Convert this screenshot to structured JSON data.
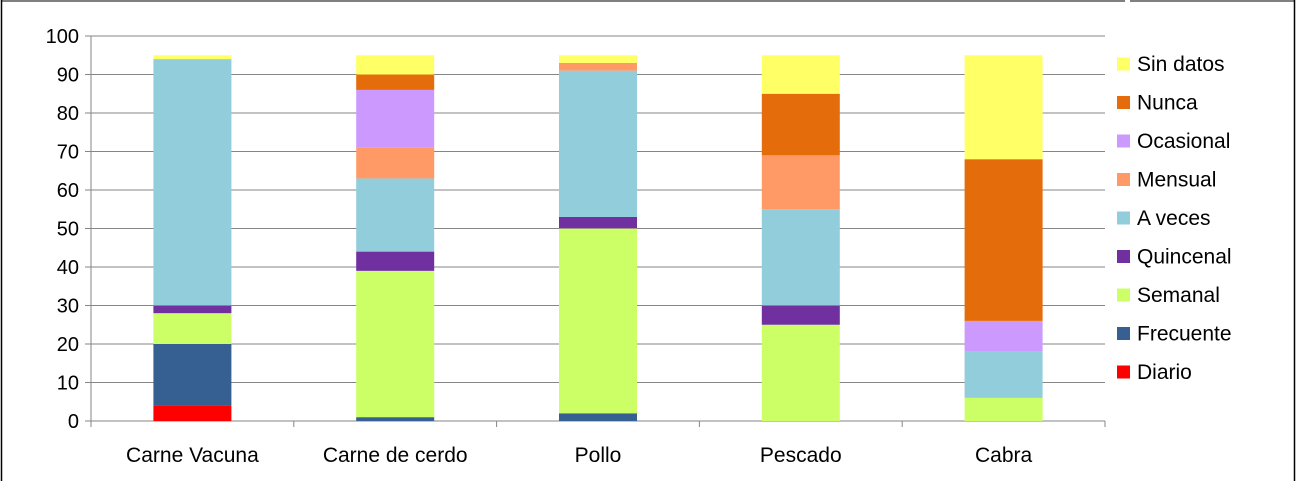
{
  "chart_data": {
    "type": "bar",
    "stacked": true,
    "categories": [
      "Carne Vacuna",
      "Carne de cerdo",
      "Pollo",
      "Pescado",
      "Cabra"
    ],
    "series": [
      {
        "name": "Diario",
        "color": "#FF0000",
        "values": [
          4,
          0,
          0,
          0,
          0
        ]
      },
      {
        "name": "Frecuente",
        "color": "#356091",
        "values": [
          16,
          1,
          2,
          0,
          0
        ]
      },
      {
        "name": "Semanal",
        "color": "#CCFF66",
        "values": [
          8,
          38,
          48,
          25,
          6
        ]
      },
      {
        "name": "Quincenal",
        "color": "#7030A0",
        "values": [
          2,
          5,
          3,
          5,
          0
        ]
      },
      {
        "name": "A veces",
        "color": "#92CDDC",
        "values": [
          64,
          19,
          38,
          25,
          12
        ]
      },
      {
        "name": "Mensual",
        "color": "#FF9966",
        "values": [
          0,
          8,
          2,
          14,
          0
        ]
      },
      {
        "name": "Ocasional",
        "color": "#CC99FF",
        "values": [
          0,
          15,
          0,
          0,
          8
        ]
      },
      {
        "name": "Nunca",
        "color": "#E46C0A",
        "values": [
          0,
          4,
          0,
          16,
          42
        ]
      },
      {
        "name": "Sin datos",
        "color": "#FFFF66",
        "values": [
          1,
          5,
          2,
          10,
          27
        ]
      }
    ],
    "yticks": [
      "0",
      "10",
      "20",
      "30",
      "40",
      "50",
      "60",
      "70",
      "80",
      "90",
      "100"
    ],
    "ylim": [
      0,
      100
    ],
    "grid": true,
    "legend_position": "right"
  }
}
